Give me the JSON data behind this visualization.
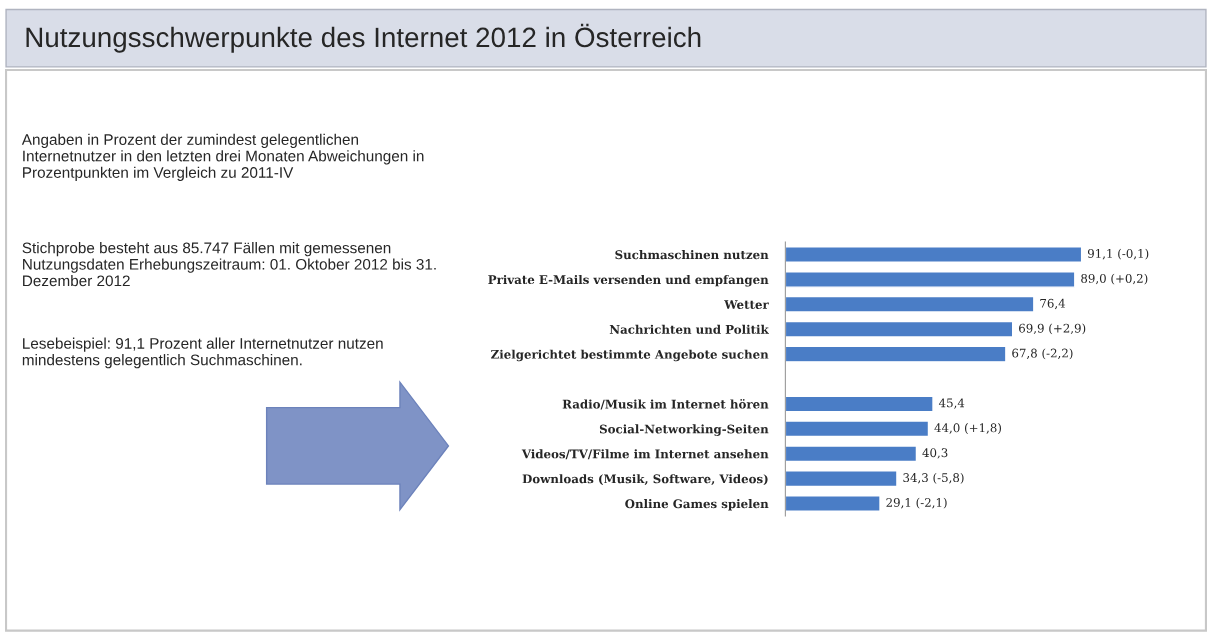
{
  "chart_data": {
    "type": "bar",
    "orientation": "horizontal",
    "title": "Nutzungsschwerpunkte des Internet 2012 in Österreich",
    "annotations": [
      "Angaben in Prozent der zumindest gelegentlichen Internetnutzer in den letzten drei Monaten Abweichungen in Prozentpunkten im Vergleich zu 2011-IV",
      "Stichprobe besteht aus 85.747 Fällen mit gemessenen Nutzungsdaten Erhebungszeitraum: 01. Oktober 2012 bis 31. Dezember 2012",
      "Lesebeispiel: 91,1 Prozent aller Internetnutzer nutzen mindestens gelegentlich Suchmaschinen."
    ],
    "categories": [
      "Suchmaschinen nutzen",
      "Private E-Mails versenden und empfangen",
      "Wetter",
      "Nachrichten und Politik",
      "Zielgerichtet bestimmte Angebote suchen",
      null,
      "Radio/Musik im Internet hören",
      "Social-Networking-Seiten",
      "Videos/TV/Filme im Internet ansehen",
      "Downloads (Musik, Software, Videos)",
      "Online Games spielen"
    ],
    "values": [
      91.1,
      89.0,
      76.4,
      69.9,
      67.8,
      null,
      45.4,
      44.0,
      40.3,
      34.3,
      29.1
    ],
    "value_labels": [
      "91,1 (-0,1)",
      "89,0 (+0,2)",
      "76,4",
      "69,9 (+2,9)",
      "67,8 (-2,2)",
      null,
      "45,4",
      "44,0 (+1,8)",
      "40,3",
      "34,3 (-5,8)",
      "29,1 (-2,1)"
    ],
    "color": "#4a7dc6",
    "grid": false,
    "legend": false
  }
}
